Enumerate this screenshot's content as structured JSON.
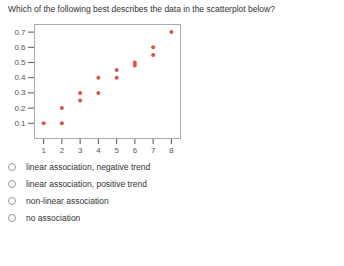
{
  "chart_data": {
    "type": "scatter",
    "title": "Which of the following best describes the data in the scatterplot below?",
    "x": [
      1,
      2,
      2,
      3,
      3,
      4,
      4,
      5,
      5,
      6,
      6,
      7,
      7,
      8
    ],
    "values": [
      0.1,
      0.2,
      0.1,
      0.3,
      0.25,
      0.3,
      0.4,
      0.45,
      0.4,
      0.5,
      0.48,
      0.6,
      0.55,
      0.7
    ],
    "color": "#d9534f",
    "xlim": [
      0.5,
      8.5
    ],
    "ylim": [
      0.0,
      0.75
    ],
    "xticks": [
      1,
      2,
      3,
      4,
      5,
      6,
      7,
      8
    ],
    "yticks": [
      0.1,
      0.2,
      0.3,
      0.4,
      0.5,
      0.6,
      0.7
    ],
    "annotations": [
      "linear association, negative trend",
      "linear association, positive trend",
      "non-linear association",
      "no association"
    ]
  }
}
